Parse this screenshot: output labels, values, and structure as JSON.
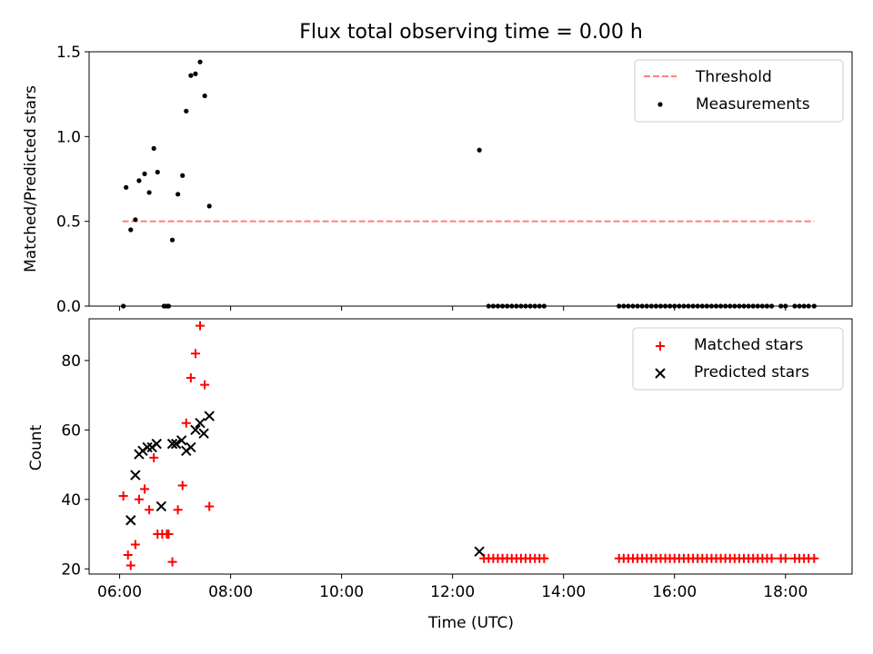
{
  "title": "Flux total observing time = 0.00 h",
  "colors": {
    "threshold": "#ff7f7f",
    "measurement": "#000000",
    "matched": "#ff0000",
    "predicted": "#000000"
  },
  "chart_data": [
    {
      "type": "scatter",
      "xlabel": "",
      "ylabel": "Matched/Predicted stars",
      "xlim_hours": [
        5.45,
        19.2
      ],
      "ylim": [
        0,
        1.5
      ],
      "yticks": [
        0.0,
        0.5,
        1.0,
        1.5
      ],
      "ytick_labels": [
        "0.0",
        "0.5",
        "1.0",
        "1.5"
      ],
      "grid": false,
      "legend_position": "top-right",
      "legend": [
        {
          "label": "Threshold",
          "kind": "dashed-line"
        },
        {
          "label": "Measurements",
          "kind": "dot"
        }
      ],
      "threshold": {
        "y": 0.5,
        "x_range": [
          "06:03",
          "18:31"
        ]
      },
      "series": [
        {
          "name": "Measurements",
          "x": [
            "06:04",
            "06:07",
            "06:12",
            "06:17",
            "06:21",
            "06:27",
            "06:32",
            "06:37",
            "06:41",
            "06:48",
            "06:51",
            "06:53",
            "06:57",
            "07:03",
            "07:08",
            "07:12",
            "07:17",
            "07:22",
            "07:27",
            "07:32",
            "07:37",
            "12:29",
            "12:39",
            "12:44",
            "12:49",
            "12:54",
            "12:59",
            "13:04",
            "13:09",
            "13:14",
            "13:19",
            "13:24",
            "13:29",
            "13:34",
            "13:39",
            "15:00",
            "15:05",
            "15:10",
            "15:15",
            "15:20",
            "15:25",
            "15:30",
            "15:35",
            "15:40",
            "15:45",
            "15:50",
            "15:55",
            "16:00",
            "16:05",
            "16:10",
            "16:15",
            "16:20",
            "16:25",
            "16:30",
            "16:35",
            "16:40",
            "16:45",
            "16:50",
            "16:55",
            "17:00",
            "17:05",
            "17:10",
            "17:15",
            "17:20",
            "17:25",
            "17:30",
            "17:35",
            "17:40",
            "17:45",
            "17:55",
            "18:00",
            "18:10",
            "18:15",
            "18:20",
            "18:25",
            "18:31"
          ],
          "y": [
            0.0,
            0.7,
            0.45,
            0.51,
            0.74,
            0.78,
            0.67,
            0.93,
            0.79,
            0.0,
            0.0,
            0.0,
            0.39,
            0.66,
            0.77,
            1.15,
            1.36,
            1.37,
            1.44,
            1.24,
            0.59,
            0.92,
            0,
            0,
            0,
            0,
            0,
            0,
            0,
            0,
            0,
            0,
            0,
            0,
            0,
            0,
            0,
            0,
            0,
            0,
            0,
            0,
            0,
            0,
            0,
            0,
            0,
            0,
            0,
            0,
            0,
            0,
            0,
            0,
            0,
            0,
            0,
            0,
            0,
            0,
            0,
            0,
            0,
            0,
            0,
            0,
            0,
            0,
            0,
            0,
            0,
            0,
            0,
            0,
            0,
            0
          ]
        }
      ]
    },
    {
      "type": "scatter",
      "xlabel": "Time (UTC)",
      "ylabel": "Count",
      "xlim_hours": [
        5.45,
        19.2
      ],
      "xticks": [
        "06:00",
        "08:00",
        "10:00",
        "12:00",
        "14:00",
        "16:00",
        "18:00"
      ],
      "ylim": [
        18.5,
        92
      ],
      "yticks": [
        20,
        40,
        60,
        80
      ],
      "ytick_labels": [
        "20",
        "40",
        "60",
        "80"
      ],
      "grid": false,
      "legend_position": "top-right",
      "legend": [
        {
          "label": "Matched stars",
          "kind": "plus"
        },
        {
          "label": "Predicted stars",
          "kind": "cross"
        }
      ],
      "series": [
        {
          "name": "Matched stars",
          "x": [
            "06:04",
            "06:09",
            "06:12",
            "06:17",
            "06:21",
            "06:27",
            "06:32",
            "06:37",
            "06:41",
            "06:46",
            "06:51",
            "06:53",
            "06:57",
            "07:03",
            "07:08",
            "07:12",
            "07:17",
            "07:22",
            "07:27",
            "07:32",
            "07:37",
            "12:34",
            "12:39",
            "12:44",
            "12:49",
            "12:54",
            "12:59",
            "13:04",
            "13:09",
            "13:14",
            "13:19",
            "13:24",
            "13:29",
            "13:34",
            "13:39",
            "15:00",
            "15:05",
            "15:10",
            "15:15",
            "15:20",
            "15:25",
            "15:30",
            "15:35",
            "15:40",
            "15:45",
            "15:50",
            "15:55",
            "16:00",
            "16:05",
            "16:10",
            "16:15",
            "16:20",
            "16:25",
            "16:30",
            "16:35",
            "16:40",
            "16:45",
            "16:50",
            "16:55",
            "17:00",
            "17:05",
            "17:10",
            "17:15",
            "17:20",
            "17:25",
            "17:30",
            "17:35",
            "17:40",
            "17:45",
            "17:55",
            "18:00",
            "18:10",
            "18:15",
            "18:20",
            "18:25",
            "18:31"
          ],
          "y": [
            41,
            24,
            21,
            27,
            40,
            43,
            37,
            52,
            30,
            30,
            30,
            30,
            22,
            37,
            44,
            62,
            75,
            82,
            90,
            73,
            38,
            23,
            23,
            23,
            23,
            23,
            23,
            23,
            23,
            23,
            23,
            23,
            23,
            23,
            23,
            23,
            23,
            23,
            23,
            23,
            23,
            23,
            23,
            23,
            23,
            23,
            23,
            23,
            23,
            23,
            23,
            23,
            23,
            23,
            23,
            23,
            23,
            23,
            23,
            23,
            23,
            23,
            23,
            23,
            23,
            23,
            23,
            23,
            23,
            23,
            23,
            23,
            23,
            23,
            23,
            23
          ]
        },
        {
          "name": "Predicted stars",
          "x": [
            "06:12",
            "06:17",
            "06:21",
            "06:25",
            "06:30",
            "06:35",
            "06:40",
            "06:45",
            "06:57",
            "07:01",
            "07:07",
            "07:12",
            "07:17",
            "07:22",
            "07:27",
            "07:31",
            "07:37",
            "12:29"
          ],
          "y": [
            34,
            47,
            53,
            54,
            55,
            55,
            56,
            38,
            56,
            56,
            57,
            54,
            55,
            60,
            62,
            59,
            64,
            25
          ]
        }
      ]
    }
  ]
}
